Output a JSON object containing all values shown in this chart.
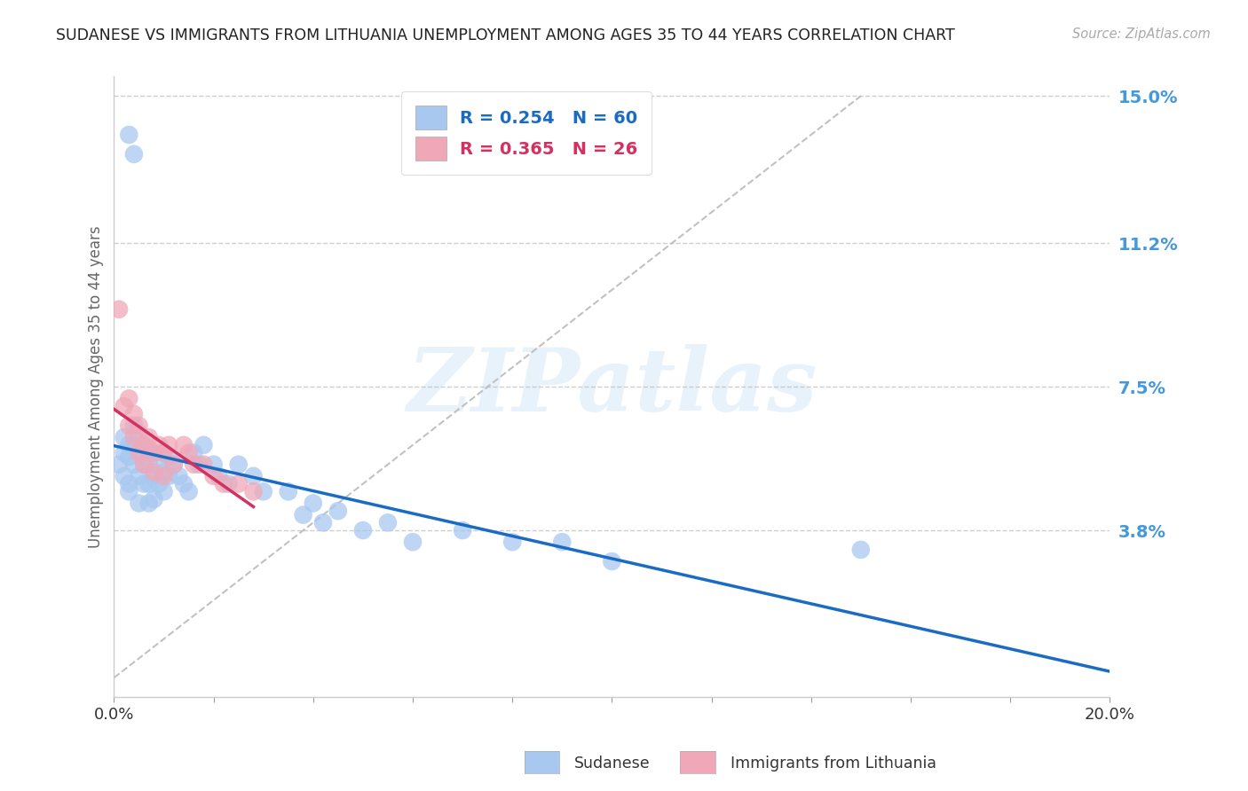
{
  "title": "SUDANESE VS IMMIGRANTS FROM LITHUANIA UNEMPLOYMENT AMONG AGES 35 TO 44 YEARS CORRELATION CHART",
  "source_text": "Source: ZipAtlas.com",
  "ylabel": "Unemployment Among Ages 35 to 44 years",
  "xlim": [
    0.0,
    0.2
  ],
  "ylim": [
    -0.005,
    0.155
  ],
  "ytick_labels": [
    "3.8%",
    "7.5%",
    "11.2%",
    "15.0%"
  ],
  "ytick_positions": [
    0.038,
    0.075,
    0.112,
    0.15
  ],
  "watermark": "ZIPatlas",
  "legend_label_1": "R = 0.254   N = 60",
  "legend_label_2": "R = 0.365   N = 26",
  "sudanese_color": "#a8c8f0",
  "lithuania_color": "#f0a8b8",
  "trendline_sudanese_color": "#1a6bc4",
  "trendline_lithuania_color": "#d43060",
  "title_color": "#222222",
  "ytick_color": "#4499dd",
  "background_color": "#ffffff",
  "grid_color": "#bbbbbb",
  "sudanese_x": [
    0.001,
    0.002,
    0.002,
    0.002,
    0.003,
    0.003,
    0.003,
    0.003,
    0.004,
    0.004,
    0.004,
    0.005,
    0.005,
    0.005,
    0.005,
    0.006,
    0.006,
    0.006,
    0.007,
    0.007,
    0.007,
    0.007,
    0.008,
    0.008,
    0.008,
    0.009,
    0.009,
    0.01,
    0.01,
    0.01,
    0.011,
    0.011,
    0.012,
    0.013,
    0.014,
    0.015,
    0.016,
    0.017,
    0.018,
    0.02,
    0.021,
    0.023,
    0.025,
    0.028,
    0.03,
    0.035,
    0.038,
    0.04,
    0.042,
    0.045,
    0.05,
    0.055,
    0.06,
    0.07,
    0.08,
    0.09,
    0.1,
    0.15,
    0.003,
    0.004
  ],
  "sudanese_y": [
    0.055,
    0.062,
    0.058,
    0.052,
    0.06,
    0.057,
    0.05,
    0.048,
    0.065,
    0.06,
    0.055,
    0.063,
    0.058,
    0.052,
    0.045,
    0.06,
    0.055,
    0.05,
    0.058,
    0.055,
    0.05,
    0.045,
    0.058,
    0.052,
    0.046,
    0.055,
    0.05,
    0.058,
    0.053,
    0.048,
    0.057,
    0.052,
    0.055,
    0.052,
    0.05,
    0.048,
    0.058,
    0.055,
    0.06,
    0.055,
    0.052,
    0.05,
    0.055,
    0.052,
    0.048,
    0.048,
    0.042,
    0.045,
    0.04,
    0.043,
    0.038,
    0.04,
    0.035,
    0.038,
    0.035,
    0.035,
    0.03,
    0.033,
    0.14,
    0.135
  ],
  "lithuania_x": [
    0.001,
    0.002,
    0.003,
    0.003,
    0.004,
    0.004,
    0.005,
    0.005,
    0.006,
    0.006,
    0.007,
    0.008,
    0.008,
    0.009,
    0.01,
    0.01,
    0.011,
    0.012,
    0.014,
    0.015,
    0.016,
    0.018,
    0.02,
    0.022,
    0.025,
    0.028
  ],
  "lithuania_y": [
    0.095,
    0.07,
    0.072,
    0.065,
    0.068,
    0.062,
    0.065,
    0.058,
    0.06,
    0.055,
    0.062,
    0.058,
    0.053,
    0.06,
    0.058,
    0.052,
    0.06,
    0.055,
    0.06,
    0.058,
    0.055,
    0.055,
    0.052,
    0.05,
    0.05,
    0.048
  ]
}
